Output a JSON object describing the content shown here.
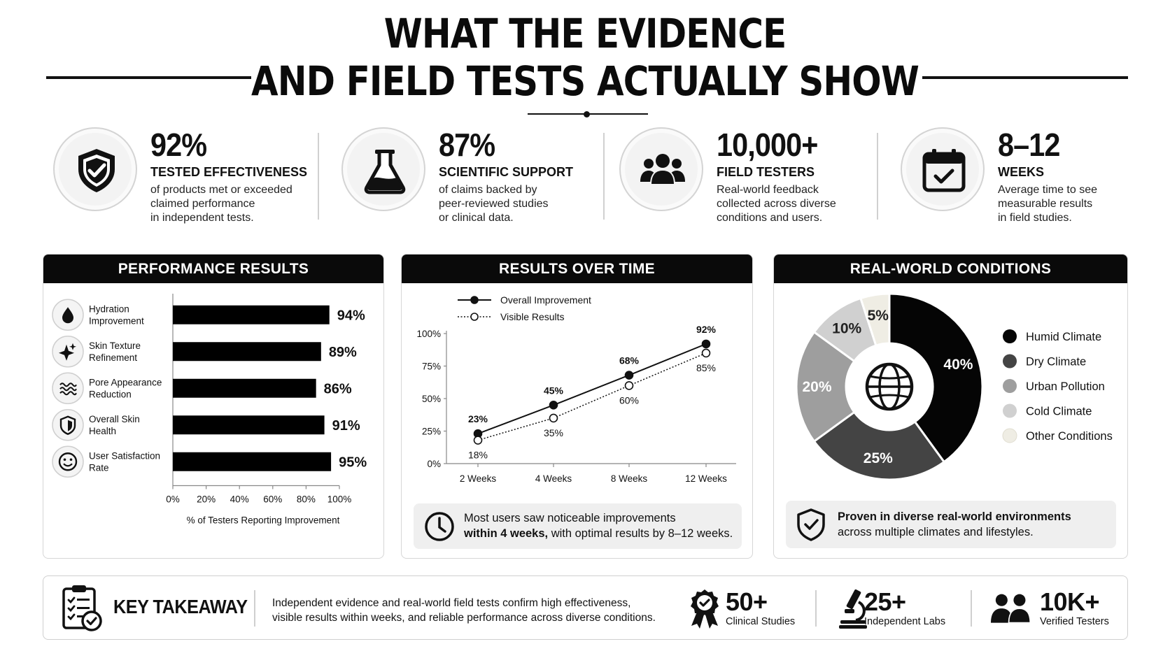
{
  "header": {
    "title_line1": "WHAT THE EVIDENCE",
    "title_line2": "AND FIELD TESTS ACTUALLY SHOW"
  },
  "stats": [
    {
      "value": "92%",
      "label": "TESTED EFFECTIVENESS",
      "desc": [
        "of products met or exceeded",
        "claimed performance",
        "in independent tests."
      ],
      "icon": "shield-check-icon"
    },
    {
      "value": "87%",
      "label": "SCIENTIFIC SUPPORT",
      "desc": [
        "of claims backed by",
        "peer-reviewed studies",
        "or clinical data."
      ],
      "icon": "flask-icon"
    },
    {
      "value": "10,000+",
      "label": "FIELD TESTERS",
      "desc": [
        "Real-world feedback",
        "collected across diverse",
        "conditions and users."
      ],
      "icon": "people-icon"
    },
    {
      "value": "8–12",
      "label": "WEEKS",
      "desc": [
        "Average time to see",
        "measurable results",
        "in field studies."
      ],
      "icon": "calendar-check-icon"
    }
  ],
  "panels": {
    "performance": {
      "title": "PERFORMANCE RESULTS"
    },
    "over_time": {
      "title": "RESULTS OVER TIME",
      "note_line1": "Most users saw noticeable improvements",
      "note_bold": "within 4 weeks,",
      "note_rest": " with optimal results by 8–12 weeks."
    },
    "conditions": {
      "title": "REAL-WORLD CONDITIONS",
      "note_bold": "Proven in diverse real-world environments",
      "note_line2": "across multiple climates and lifestyles."
    }
  },
  "chart_data": [
    {
      "type": "bar",
      "orientation": "horizontal",
      "title": "PERFORMANCE RESULTS",
      "categories": [
        [
          "Hydration",
          "Improvement"
        ],
        [
          "Skin Texture",
          "Refinement"
        ],
        [
          "Pore Appearance",
          "Reduction"
        ],
        [
          "Overall Skin",
          "Health"
        ],
        [
          "User Satisfaction",
          "Rate"
        ]
      ],
      "icons": [
        "droplet-icon",
        "sparkle-icon",
        "waves-icon",
        "shield-icon",
        "smile-icon"
      ],
      "values": [
        94,
        89,
        86,
        91,
        95
      ],
      "data_labels": [
        "94%",
        "89%",
        "86%",
        "91%",
        "95%"
      ],
      "xlim": [
        0,
        100
      ],
      "xticks": [
        "0%",
        "20%",
        "40%",
        "60%",
        "80%",
        "100%"
      ],
      "xlabel": "% of Testers Reporting Improvement",
      "bar_color": "#000000"
    },
    {
      "type": "line",
      "title": "RESULTS OVER TIME",
      "categories": [
        "2 Weeks",
        "4 Weeks",
        "8 Weeks",
        "12 Weeks"
      ],
      "series": [
        {
          "name": "Overall Improvement",
          "values": [
            23,
            45,
            68,
            92
          ],
          "labels": [
            "23%",
            "45%",
            "68%",
            "92%"
          ],
          "style": "solid-filled"
        },
        {
          "name": "Visible Results",
          "values": [
            18,
            35,
            60,
            85
          ],
          "labels": [
            "18%",
            "35%",
            "60%",
            "85%"
          ],
          "style": "dotted-hollow"
        }
      ],
      "ylim": [
        0,
        100
      ],
      "yticks": [
        "0%",
        "25%",
        "50%",
        "75%",
        "100%"
      ],
      "legend": "top-left"
    },
    {
      "type": "pie",
      "style": "donut",
      "title": "REAL-WORLD CONDITIONS",
      "slices": [
        {
          "name": "Humid Climate",
          "value": 40,
          "label": "40%",
          "color": "#050505"
        },
        {
          "name": "Dry Climate",
          "value": 25,
          "label": "25%",
          "color": "#444444"
        },
        {
          "name": "Urban Pollution",
          "value": 20,
          "label": "20%",
          "color": "#9e9e9e"
        },
        {
          "name": "Cold Climate",
          "value": 10,
          "label": "10%",
          "color": "#d0d0d0"
        },
        {
          "name": "Other Conditions",
          "value": 5,
          "label": "5%",
          "color": "#efede4"
        }
      ],
      "center_icon": "globe-icon",
      "legend": "right"
    }
  ],
  "takeaway": {
    "title": "KEY TAKEAWAY",
    "desc_line1": "Independent evidence and real-world field tests confirm high effectiveness,",
    "desc_line2": "visible results within weeks, and reliable performance across diverse conditions.",
    "stats": [
      {
        "value": "50+",
        "label": "Clinical Studies",
        "icon": "award-badge-icon"
      },
      {
        "value": "25+",
        "label": "Independent Labs",
        "icon": "microscope-icon"
      },
      {
        "value": "10K+",
        "label": "Verified Testers",
        "icon": "people-icon"
      }
    ]
  }
}
